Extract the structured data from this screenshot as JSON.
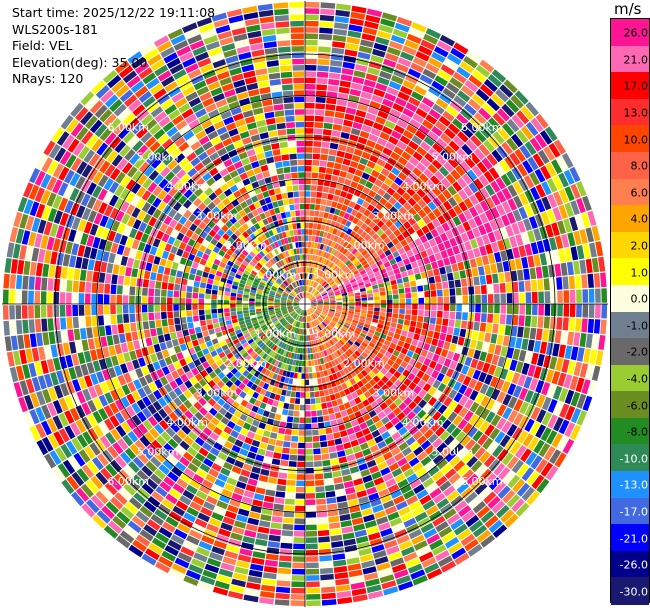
{
  "info": {
    "start_time": "Start time: 2025/12/22 19:11:08",
    "instrument": "WLS200s-181",
    "field": "Field: VEL",
    "elevation": "Elevation(deg): 35.00",
    "nrays": "NRays: 120"
  },
  "colorbar": {
    "unit": "m/s",
    "ticks": [
      "26.0",
      "21.0",
      "17.0",
      "13.0",
      "10.0",
      "8.0",
      "6.0",
      "4.0",
      "2.0",
      "1.0",
      "0.0",
      "-1.0",
      "-2.0",
      "-4.0",
      "-6.0",
      "-8.0",
      "-10.0",
      "-13.0",
      "-17.0",
      "-21.0",
      "-26.0",
      "-30.0"
    ],
    "colors": [
      "#ff1493",
      "#ff69b4",
      "#ff0000",
      "#ff2d2d",
      "#ff4500",
      "#ff6347",
      "#ff7f50",
      "#ffa500",
      "#ffd700",
      "#ffff00",
      "#ffffe0",
      "#708090",
      "#696969",
      "#9acd32",
      "#6b8e23",
      "#228b22",
      "#2e8b57",
      "#1e90ff",
      "#4169e1",
      "#0000ff",
      "#00008b",
      "#191970"
    ]
  },
  "chart_data": {
    "type": "heatmap",
    "projection": "polar PPI",
    "field": "VEL",
    "nrays": 120,
    "range_labels": [
      "1.00km",
      "2.00km",
      "3.00km",
      "4.00km",
      "5.00km",
      "6.00km"
    ],
    "range_label_values": [
      1,
      2,
      3,
      4,
      5,
      6
    ],
    "max_range_km": 7.2,
    "features": [
      {
        "azimuth_from_deg": 0,
        "azimuth_to_deg": 75,
        "range_km": [
          0,
          5.5
        ],
        "velocity": "positive"
      },
      {
        "azimuth_from_deg": 90,
        "azimuth_to_deg": 170,
        "range_km": [
          0,
          3.6
        ],
        "velocity": "positive"
      },
      {
        "azimuth_from_deg": 180,
        "azimuth_to_deg": 300,
        "range_km": [
          0,
          1.6
        ],
        "velocity": "negative"
      }
    ],
    "grid": true
  }
}
